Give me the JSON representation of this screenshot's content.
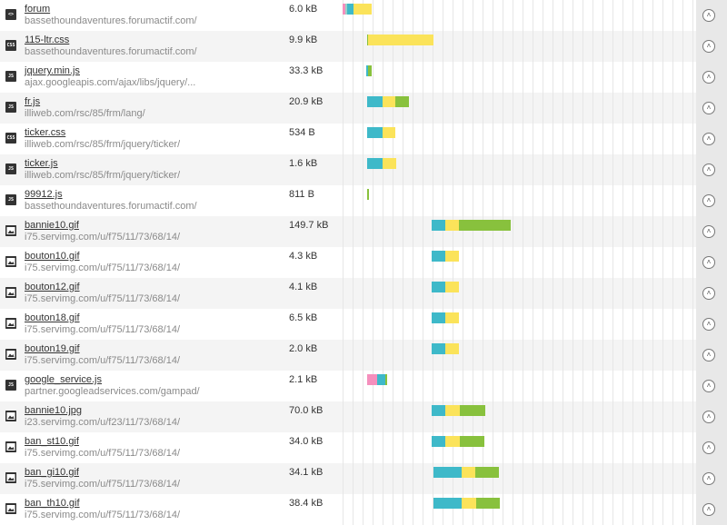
{
  "colors": {
    "blocking": "#f58fbd",
    "dns": "#9bd0c8",
    "connect": "#3eb9c9",
    "send": "#8a6fc4",
    "wait": "#fbe35a",
    "receive": "#88c13d"
  },
  "expand_icon": "chevron-up-icon",
  "requests": [
    {
      "name": "forum",
      "host": "bassethoundaventures.forumactif.com/",
      "size": "6.0 kB",
      "type": "html",
      "icon": "html-file-icon",
      "bars": [
        {
          "phase": "blocking",
          "start": 0,
          "end": 0.3
        },
        {
          "phase": "dns",
          "start": 0.3,
          "end": 0.5
        },
        {
          "phase": "connect",
          "start": 0.5,
          "end": 1.1
        },
        {
          "phase": "wait",
          "start": 1.1,
          "end": 2.9
        }
      ]
    },
    {
      "name": "115-ltr.css",
      "host": "bassethoundaventures.forumactif.com/",
      "size": "9.9 kB",
      "type": "css",
      "icon": "css-file-icon",
      "bars": [
        {
          "phase": "receive",
          "start": 2.5,
          "end": 2.6
        },
        {
          "phase": "wait",
          "start": 2.6,
          "end": 9.2
        }
      ]
    },
    {
      "name": "jquery.min.js",
      "host": "ajax.googleapis.com/ajax/libs/jquery/...",
      "size": "33.3 kB",
      "type": "js",
      "icon": "js-file-icon",
      "bars": [
        {
          "phase": "connect",
          "start": 2.4,
          "end": 2.6
        },
        {
          "phase": "receive",
          "start": 2.6,
          "end": 2.9
        }
      ]
    },
    {
      "name": "fr.js",
      "host": "illiweb.com/rsc/85/frm/lang/",
      "size": "20.9 kB",
      "type": "js",
      "icon": "js-file-icon",
      "bars": [
        {
          "phase": "connect",
          "start": 2.5,
          "end": 4.0
        },
        {
          "phase": "wait",
          "start": 4.0,
          "end": 5.3
        },
        {
          "phase": "receive",
          "start": 5.3,
          "end": 6.7
        }
      ]
    },
    {
      "name": "ticker.css",
      "host": "illiweb.com/rsc/85/frm/jquery/ticker/",
      "size": "534 B",
      "type": "css",
      "icon": "css-file-icon",
      "bars": [
        {
          "phase": "connect",
          "start": 2.5,
          "end": 4.0
        },
        {
          "phase": "wait",
          "start": 4.0,
          "end": 5.3
        }
      ]
    },
    {
      "name": "ticker.js",
      "host": "illiweb.com/rsc/85/frm/jquery/ticker/",
      "size": "1.6 kB",
      "type": "js",
      "icon": "js-file-icon",
      "bars": [
        {
          "phase": "connect",
          "start": 2.5,
          "end": 4.0
        },
        {
          "phase": "wait",
          "start": 4.0,
          "end": 5.4
        }
      ]
    },
    {
      "name": "99912.js",
      "host": "bassethoundaventures.forumactif.com/",
      "size": "811 B",
      "type": "js",
      "icon": "js-file-icon",
      "bars": [
        {
          "phase": "receive",
          "start": 2.5,
          "end": 2.7
        }
      ]
    },
    {
      "name": "bannie10.gif",
      "host": "i75.servimg.com/u/f75/11/73/68/14/",
      "size": "149.7 kB",
      "type": "image",
      "icon": "image-file-icon",
      "bars": [
        {
          "phase": "connect",
          "start": 9.0,
          "end": 10.4
        },
        {
          "phase": "wait",
          "start": 10.4,
          "end": 11.7
        },
        {
          "phase": "receive",
          "start": 11.7,
          "end": 17.0
        }
      ]
    },
    {
      "name": "bouton10.gif",
      "host": "i75.servimg.com/u/f75/11/73/68/14/",
      "size": "4.3 kB",
      "type": "image",
      "icon": "image-file-icon",
      "bars": [
        {
          "phase": "connect",
          "start": 9.0,
          "end": 10.4
        },
        {
          "phase": "wait",
          "start": 10.4,
          "end": 11.7
        }
      ]
    },
    {
      "name": "bouton12.gif",
      "host": "i75.servimg.com/u/f75/11/73/68/14/",
      "size": "4.1 kB",
      "type": "image",
      "icon": "image-file-icon",
      "bars": [
        {
          "phase": "connect",
          "start": 9.0,
          "end": 10.4
        },
        {
          "phase": "wait",
          "start": 10.4,
          "end": 11.7
        }
      ]
    },
    {
      "name": "bouton18.gif",
      "host": "i75.servimg.com/u/f75/11/73/68/14/",
      "size": "6.5 kB",
      "type": "image",
      "icon": "image-file-icon",
      "bars": [
        {
          "phase": "connect",
          "start": 9.0,
          "end": 10.4
        },
        {
          "phase": "wait",
          "start": 10.4,
          "end": 11.7
        }
      ]
    },
    {
      "name": "bouton19.gif",
      "host": "i75.servimg.com/u/f75/11/73/68/14/",
      "size": "2.0 kB",
      "type": "image",
      "icon": "image-file-icon",
      "bars": [
        {
          "phase": "connect",
          "start": 9.0,
          "end": 10.4
        },
        {
          "phase": "wait",
          "start": 10.4,
          "end": 11.7
        }
      ]
    },
    {
      "name": "google_service.js",
      "host": "partner.googleadservices.com/gampad/",
      "size": "2.1 kB",
      "type": "js",
      "icon": "js-file-icon",
      "bars": [
        {
          "phase": "blocking",
          "start": 2.5,
          "end": 3.5
        },
        {
          "phase": "connect",
          "start": 3.5,
          "end": 4.3
        },
        {
          "phase": "receive",
          "start": 4.3,
          "end": 4.5
        }
      ]
    },
    {
      "name": "bannie10.jpg",
      "host": "i23.servimg.com/u/f23/11/73/68/14/",
      "size": "70.0 kB",
      "type": "image",
      "icon": "image-file-icon",
      "bars": [
        {
          "phase": "connect",
          "start": 9.0,
          "end": 10.4
        },
        {
          "phase": "wait",
          "start": 10.4,
          "end": 11.8
        },
        {
          "phase": "receive",
          "start": 11.8,
          "end": 14.4
        }
      ]
    },
    {
      "name": "ban_st10.gif",
      "host": "i75.servimg.com/u/f75/11/73/68/14/",
      "size": "34.0 kB",
      "type": "image",
      "icon": "image-file-icon",
      "bars": [
        {
          "phase": "connect",
          "start": 9.0,
          "end": 10.4
        },
        {
          "phase": "wait",
          "start": 10.4,
          "end": 11.8
        },
        {
          "phase": "receive",
          "start": 11.8,
          "end": 14.3
        }
      ]
    },
    {
      "name": "ban_gi10.gif",
      "host": "i75.servimg.com/u/f75/11/73/68/14/",
      "size": "34.1 kB",
      "type": "image",
      "icon": "image-file-icon",
      "bars": [
        {
          "phase": "connect",
          "start": 9.2,
          "end": 12.0
        },
        {
          "phase": "wait",
          "start": 12.0,
          "end": 13.4
        },
        {
          "phase": "receive",
          "start": 13.4,
          "end": 15.8
        }
      ]
    },
    {
      "name": "ban_th10.gif",
      "host": "i75.servimg.com/u/f75/11/73/68/14/",
      "size": "38.4 kB",
      "type": "image",
      "icon": "image-file-icon",
      "bars": [
        {
          "phase": "connect",
          "start": 9.2,
          "end": 12.0
        },
        {
          "phase": "wait",
          "start": 12.0,
          "end": 13.5
        },
        {
          "phase": "receive",
          "start": 13.5,
          "end": 15.9
        }
      ]
    }
  ]
}
